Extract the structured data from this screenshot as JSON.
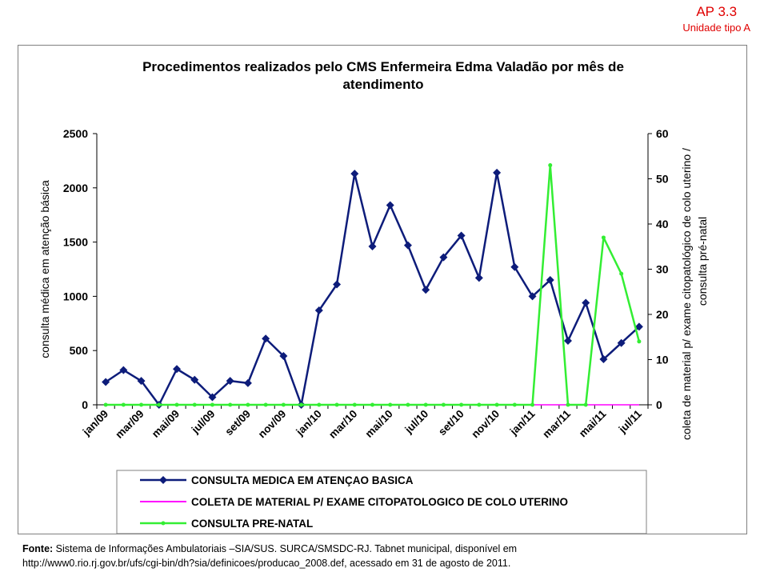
{
  "badge": {
    "title": "AP 3.3",
    "subtitle": "Unidade tipo A"
  },
  "source": {
    "label": "Fonte:",
    "line1": "Sistema de Informações Ambulatoriais –SIA/SUS. SURCA/SMSDC-RJ. Tabnet municipal, disponível em",
    "line2": "http://www0.rio.rj.gov.br/ufs/cgi-bin/dh?sia/definicoes/producao_2008.def,  acessado em 31 de agosto de 2011."
  },
  "chart_data": {
    "type": "line",
    "title_lines": [
      "Procedimentos realizados pelo CMS Enfermeira Edma Valadão por mês de",
      "atendimento"
    ],
    "ylabel_left": "consulta médica em atenção básica",
    "ylabel_right_lines": [
      "coleta de material p/ exame citopatológico de colo uterino /",
      "consulta pré-natal"
    ],
    "ylim_left": [
      0,
      2500
    ],
    "yticks_left": [
      "0",
      "500",
      "1000",
      "1500",
      "2000",
      "2500"
    ],
    "ylim_right": [
      0,
      60
    ],
    "yticks_right": [
      "0",
      "10",
      "20",
      "30",
      "40",
      "50",
      "60"
    ],
    "tick_labels": [
      "jan/09",
      "mar/09",
      "mai/09",
      "jul/09",
      "set/09",
      "nov/09",
      "jan/10",
      "mar/10",
      "mai/10",
      "jul/10",
      "set/10",
      "nov/10",
      "jan/11",
      "mar/11",
      "mai/11",
      "jul/11"
    ],
    "categories": [
      "jan/09",
      "fev/09",
      "mar/09",
      "abr/09",
      "mai/09",
      "jun/09",
      "jul/09",
      "ago/09",
      "set/09",
      "out/09",
      "nov/09",
      "dez/09",
      "jan/10",
      "fev/10",
      "mar/10",
      "abr/10",
      "mai/10",
      "jun/10",
      "jul/10",
      "ago/10",
      "set/10",
      "out/10",
      "nov/10",
      "dez/10",
      "jan/11",
      "fev/11",
      "mar/11",
      "abr/11",
      "mai/11",
      "jun/11",
      "jul/11"
    ],
    "series": [
      {
        "name": "CONSULTA MEDICA EM ATENÇAO BASICA",
        "axis": "left",
        "color": "#0d1c7a",
        "marker": "diamond",
        "values": [
          210,
          320,
          220,
          0,
          330,
          230,
          70,
          220,
          200,
          610,
          450,
          0,
          870,
          1110,
          2130,
          1460,
          1840,
          1470,
          1060,
          1360,
          1560,
          1170,
          2140,
          1270,
          1000,
          1150,
          590,
          940,
          420,
          570,
          720
        ]
      },
      {
        "name": "COLETA DE MATERIAL P/ EXAME CITOPATOLOGICO DE COLO UTERINO",
        "axis": "right",
        "color": "#ff00ff",
        "marker": "none",
        "values": [
          0,
          0,
          0,
          0,
          0,
          0,
          0,
          0,
          0,
          0,
          0,
          0,
          0,
          0,
          0,
          0,
          0,
          0,
          0,
          0,
          0,
          0,
          0,
          0,
          0,
          0,
          0,
          0,
          0,
          0,
          0
        ]
      },
      {
        "name": "CONSULTA PRE-NATAL",
        "axis": "right",
        "color": "#33ee33",
        "marker": "dot",
        "values": [
          0,
          0,
          0,
          0,
          0,
          0,
          0,
          0,
          0,
          0,
          0,
          0,
          0,
          0,
          0,
          0,
          0,
          0,
          0,
          0,
          0,
          0,
          0,
          0,
          0,
          53,
          0,
          0,
          37,
          29,
          14
        ]
      }
    ],
    "legend_placement": "bottom",
    "grid": false
  }
}
